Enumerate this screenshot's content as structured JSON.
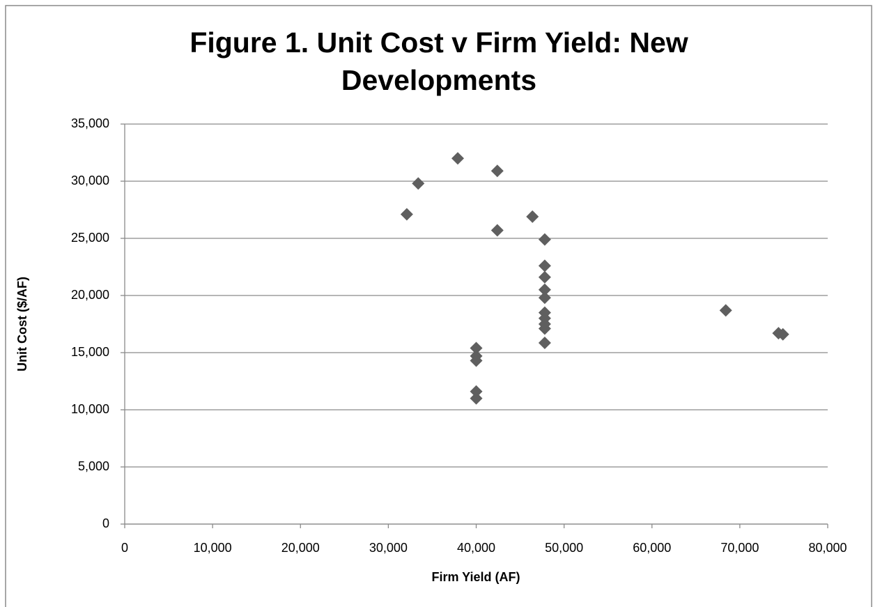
{
  "chart_data": {
    "type": "scatter",
    "title": "Figure 1. Unit Cost v Firm Yield: New Developments",
    "x_label": "Firm Yield (AF)",
    "y_label": "Unit Cost ($/AF)",
    "series": [
      {
        "name": "New Developments",
        "color": "#5f5f5f",
        "x": [
          32100,
          33400,
          37900,
          42400,
          42400,
          46400,
          47800,
          47800,
          47800,
          47800,
          47800,
          47800,
          47800,
          47800,
          47800,
          47800,
          40000,
          40000,
          40000,
          40000,
          40000,
          68400,
          74400,
          74900
        ],
        "values": [
          27100,
          29800,
          32000,
          30900,
          25700,
          26900,
          24900,
          22600,
          21600,
          20500,
          19800,
          18500,
          18000,
          17500,
          17100,
          15850,
          15400,
          14700,
          14300,
          11600,
          11000,
          18700,
          16700,
          16600
        ]
      }
    ],
    "xlim": [
      0,
      80000
    ],
    "xticks": [
      0,
      {
        "value": 10000,
        "label": "10,000"
      },
      {
        "value": 20000,
        "label": "20,000"
      },
      {
        "value": 30000,
        "label": "30,000"
      },
      {
        "value": 40000,
        "label": "40,000"
      },
      {
        "value": 50000,
        "label": "50,000"
      },
      {
        "value": 60000,
        "label": "60,000"
      },
      {
        "value": 70000,
        "label": "70,000"
      },
      {
        "value": 80000,
        "label": "80,000"
      }
    ],
    "ylim": [
      0,
      35000
    ],
    "yticks": [
      0,
      {
        "value": 5000,
        "label": "5,000"
      },
      {
        "value": 10000,
        "label": "10,000"
      },
      {
        "value": 15000,
        "label": "15,000"
      },
      {
        "value": 20000,
        "label": "20,000"
      },
      {
        "value": 25000,
        "label": "25,000"
      },
      {
        "value": 30000,
        "label": "30,000"
      },
      {
        "value": 35000,
        "label": "35,000"
      }
    ],
    "grid": true
  }
}
